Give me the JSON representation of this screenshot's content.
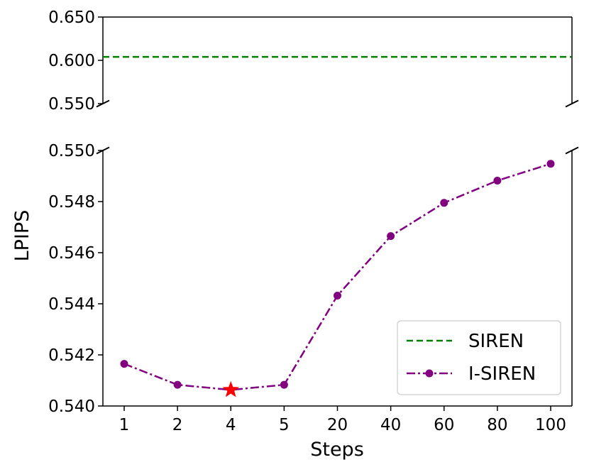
{
  "chart_data": {
    "type": "line",
    "broken_y_axis": true,
    "xlabel": "Steps",
    "ylabel": "LPIPS",
    "categories": [
      "1",
      "2",
      "4",
      "5",
      "20",
      "40",
      "60",
      "80",
      "100"
    ],
    "top_panel": {
      "ylim": [
        0.55,
        0.65
      ],
      "yticks": [
        "0.650",
        "0.600",
        "0.550"
      ]
    },
    "bottom_panel": {
      "ylim": [
        0.54,
        0.55
      ],
      "yticks": [
        "0.550",
        "0.548",
        "0.546",
        "0.544",
        "0.542",
        "0.540"
      ]
    },
    "series": [
      {
        "name": "SIREN",
        "style": "dashed",
        "color": "#008000",
        "constant_value": 0.604
      },
      {
        "name": "I-SIREN",
        "style": "dash-dot with circle markers",
        "color": "#800080",
        "values": [
          0.54165,
          0.54083,
          0.54063,
          0.54083,
          0.54432,
          0.54665,
          0.54795,
          0.54882,
          0.54948
        ]
      }
    ],
    "highlight": {
      "category": "4",
      "value": 0.54063,
      "marker": "star",
      "color": "#ff0000"
    },
    "legend": {
      "position": "bottom-right",
      "entries": [
        "SIREN",
        "I-SIREN"
      ]
    },
    "grid": false
  }
}
